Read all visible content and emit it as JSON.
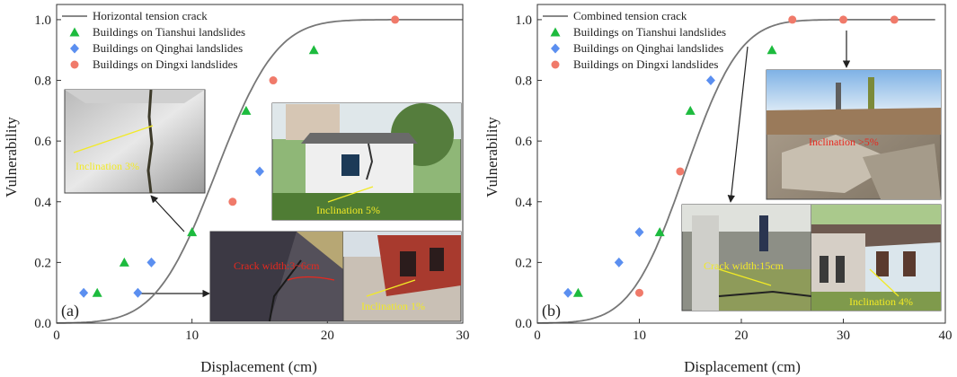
{
  "colors": {
    "curve": "#777777",
    "tianshui": "#1dbb3e",
    "qinghai": "#5b8ff0",
    "dingxi": "#f07a6a",
    "note_yellow": "#f2ea25",
    "note_red": "#e8281e",
    "axis": "#333333",
    "arrow": "#222222"
  },
  "chart_data": [
    {
      "type": "scatter",
      "panel_label": "(a)",
      "xlabel": "Displacement (cm)",
      "ylabel": "Vulnerability",
      "xlim": [
        0,
        30
      ],
      "ylim": [
        0,
        1.05
      ],
      "x_ticks": [
        "0",
        "10",
        "20",
        "30"
      ],
      "y_ticks": [
        "0.0",
        "0.2",
        "0.4",
        "0.6",
        "0.8",
        "1.0"
      ],
      "grid": false,
      "legend_position": "top-left",
      "curve": {
        "name": "Horizontal tension crack",
        "mean": 11.8,
        "sd": 3.5
      },
      "series": [
        {
          "name": "Buildings on Tianshui landslides",
          "marker": "triangle",
          "x": [
            3,
            5,
            10,
            14,
            19
          ],
          "y": [
            0.1,
            0.2,
            0.3,
            0.7,
            0.9
          ]
        },
        {
          "name": "Buildings on Qinghai landslides",
          "marker": "diamond",
          "x": [
            2,
            6,
            7,
            15
          ],
          "y": [
            0.1,
            0.1,
            0.2,
            0.5
          ]
        },
        {
          "name": "Buildings on Dingxi landslides",
          "marker": "circle",
          "x": [
            13,
            16,
            25
          ],
          "y": [
            0.4,
            0.8,
            1.0
          ]
        }
      ],
      "photo_notes": [
        "Inclination 3%",
        "Inclination 5%",
        "Crack width:3~6cm",
        "Inclination 1%"
      ]
    },
    {
      "type": "scatter",
      "panel_label": "(b)",
      "xlabel": "Displacement (cm)",
      "ylabel": "Vulnerability",
      "xlim": [
        0,
        40
      ],
      "ylim": [
        0,
        1.05
      ],
      "x_ticks": [
        "0",
        "10",
        "20",
        "30",
        "40"
      ],
      "y_ticks": [
        "0.0",
        "0.2",
        "0.4",
        "0.6",
        "0.8",
        "1.0"
      ],
      "grid": false,
      "legend_position": "top-left",
      "curve": {
        "name": "Combined tension crack",
        "mean": 14.5,
        "sd": 4.2
      },
      "series": [
        {
          "name": "Buildings on Tianshui landslides",
          "marker": "triangle",
          "x": [
            4,
            12,
            15,
            23
          ],
          "y": [
            0.1,
            0.3,
            0.7,
            0.9
          ]
        },
        {
          "name": "Buildings on Qinghai landslides",
          "marker": "diamond",
          "x": [
            3,
            8,
            10,
            17
          ],
          "y": [
            0.1,
            0.2,
            0.3,
            0.8
          ]
        },
        {
          "name": "Buildings on Dingxi landslides",
          "marker": "circle",
          "x": [
            10,
            14,
            25,
            30,
            35
          ],
          "y": [
            0.1,
            0.5,
            1.0,
            1.0,
            1.0
          ]
        }
      ],
      "photo_notes": [
        "Inclination >5%",
        "Crack width:15cm",
        "Inclination 4%"
      ]
    }
  ]
}
